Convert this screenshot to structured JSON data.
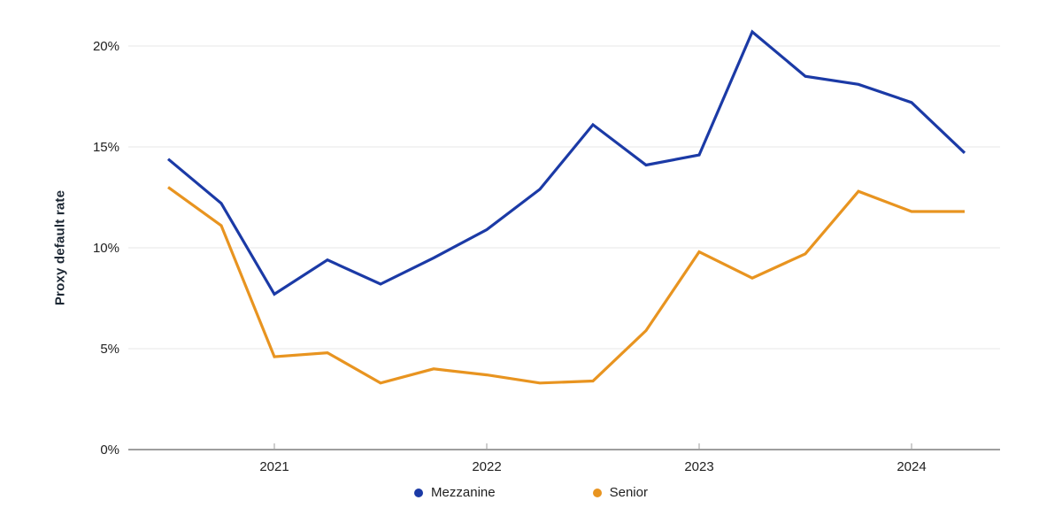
{
  "page": {
    "background": "#ffffff"
  },
  "chart_data": {
    "type": "line",
    "title": "",
    "ylabel": "Proxy default rate",
    "ylim": [
      0,
      21.5
    ],
    "yticks": [
      {
        "value": 0,
        "label": "0%"
      },
      {
        "value": 5,
        "label": "5%"
      },
      {
        "value": 10,
        "label": "10%"
      },
      {
        "value": 15,
        "label": "15%"
      },
      {
        "value": 20,
        "label": "20%"
      }
    ],
    "x": [
      "2020-Q3",
      "2020-Q4",
      "2021-Q1",
      "2021-Q2",
      "2021-Q3",
      "2021-Q4",
      "2022-Q1",
      "2022-Q2",
      "2022-Q3",
      "2022-Q4",
      "2023-Q1",
      "2023-Q2",
      "2023-Q3",
      "2023-Q4",
      "2024-Q1",
      "2024-Q2"
    ],
    "xticks": [
      {
        "index": 2,
        "label": "2021"
      },
      {
        "index": 6,
        "label": "2022"
      },
      {
        "index": 10,
        "label": "2023"
      },
      {
        "index": 14,
        "label": "2024"
      }
    ],
    "grid": "horizontal-only",
    "legend_position": "bottom-center",
    "series": [
      {
        "name": "Mezzanine",
        "color": "#1b3aa6",
        "values": [
          14.4,
          12.2,
          7.7,
          9.4,
          8.2,
          9.5,
          10.9,
          12.9,
          16.1,
          14.1,
          14.6,
          20.7,
          18.5,
          18.1,
          17.2,
          14.7
        ]
      },
      {
        "name": "Senior",
        "color": "#e89420",
        "values": [
          13.0,
          11.1,
          4.6,
          4.8,
          3.3,
          4.0,
          3.7,
          3.3,
          3.4,
          5.9,
          9.8,
          8.5,
          9.7,
          12.8,
          11.8,
          11.8
        ]
      }
    ]
  },
  "colors": {
    "grid": "#e7e7e7",
    "axis": "#9e9e9e",
    "tick": "#9e9e9e",
    "text": "#212121",
    "ylabel_text": "#1c2733"
  }
}
